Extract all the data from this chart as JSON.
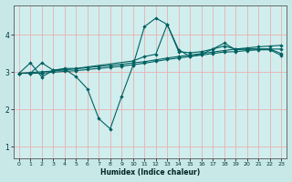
{
  "xlabel": "Humidex (Indice chaleur)",
  "background_color": "#c8e8e8",
  "plot_bg_color": "#d0eeee",
  "grid_color": "#e8b0b0",
  "line_color": "#006060",
  "xlim": [
    -0.5,
    23.5
  ],
  "ylim": [
    0.7,
    4.8
  ],
  "yticks": [
    1,
    2,
    3,
    4
  ],
  "xticks": [
    0,
    1,
    2,
    3,
    4,
    5,
    6,
    7,
    8,
    9,
    10,
    11,
    12,
    13,
    14,
    15,
    16,
    17,
    18,
    19,
    20,
    21,
    22,
    23
  ],
  "line1_x": [
    0,
    1,
    2,
    3,
    4,
    5,
    6,
    7,
    8,
    9,
    10,
    11,
    12,
    13,
    14,
    15,
    16,
    17,
    18,
    19,
    20,
    21,
    22,
    23
  ],
  "line1_y": [
    2.97,
    3.25,
    2.87,
    3.05,
    3.08,
    2.88,
    2.55,
    1.75,
    1.48,
    2.35,
    3.18,
    4.22,
    4.45,
    4.28,
    3.6,
    3.42,
    3.48,
    3.62,
    3.78,
    3.6,
    3.62,
    3.62,
    3.62,
    3.62
  ],
  "line2_x": [
    0,
    1,
    2,
    3,
    4,
    5,
    6,
    7,
    8,
    9,
    10,
    11,
    12,
    13,
    14,
    15,
    16,
    17,
    18,
    19,
    20,
    21,
    22,
    23
  ],
  "line2_y": [
    2.97,
    2.99,
    3.01,
    3.03,
    3.06,
    3.09,
    3.12,
    3.15,
    3.18,
    3.21,
    3.25,
    3.28,
    3.33,
    3.38,
    3.42,
    3.46,
    3.5,
    3.54,
    3.58,
    3.62,
    3.65,
    3.68,
    3.7,
    3.72
  ],
  "line3_x": [
    0,
    1,
    2,
    3,
    4,
    5,
    10,
    11,
    12,
    13,
    14,
    15,
    16,
    17,
    18,
    19,
    20,
    21,
    22,
    23
  ],
  "line3_y": [
    2.97,
    2.97,
    3.25,
    3.05,
    3.1,
    3.1,
    3.3,
    3.42,
    3.48,
    4.28,
    3.55,
    3.52,
    3.55,
    3.62,
    3.7,
    3.62,
    3.62,
    3.62,
    3.62,
    3.5
  ],
  "line4_x": [
    0,
    1,
    2,
    3,
    4,
    5,
    6,
    7,
    8,
    9,
    10,
    11,
    12,
    13,
    14,
    15,
    16,
    17,
    18,
    19,
    20,
    21,
    22,
    23
  ],
  "line4_y": [
    2.97,
    2.97,
    2.97,
    3.0,
    3.02,
    3.04,
    3.07,
    3.1,
    3.13,
    3.16,
    3.2,
    3.24,
    3.29,
    3.34,
    3.38,
    3.42,
    3.46,
    3.5,
    3.54,
    3.55,
    3.58,
    3.6,
    3.6,
    3.45
  ]
}
